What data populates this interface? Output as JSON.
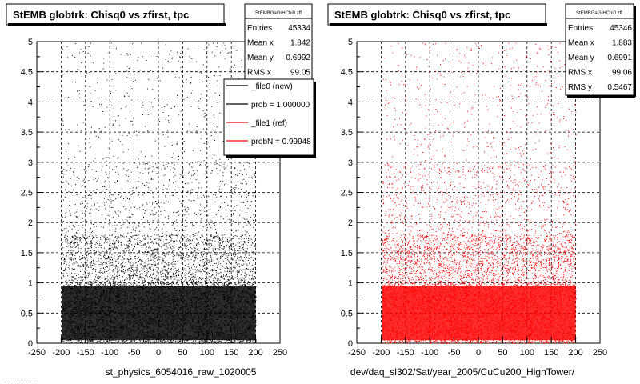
{
  "footer_left_fragment": "... ... ... ... ...",
  "charts": [
    {
      "title": "StEMB globtrk: Chisq0 vs zfirst, tpc",
      "xlabel": "st_physics_6054016_raw_1020005",
      "stats": {
        "name": "StEMBGaGrHChi0 zff",
        "rows": [
          {
            "label": "Entries",
            "value": "45334"
          },
          {
            "label": "Mean x",
            "value": "1.842"
          },
          {
            "label": "Mean y",
            "value": "0.6992"
          },
          {
            "label": "RMS x",
            "value": "99.05"
          }
        ]
      },
      "legend": [
        {
          "label": "_file0 (new)",
          "color": "#000000"
        },
        {
          "label": "prob = 1.000000",
          "color": "#000000"
        },
        {
          "label": "_file1 (ref)",
          "color": "#ff0000"
        },
        {
          "label": "probN = 0.99948",
          "color": "#ff0000"
        }
      ]
    },
    {
      "title": "StEMB globtrk: Chisq0 vs zfirst, tpc",
      "xlabel": "dev/daq_sl302/Sat/year_2005/CuCu200_HighTower/",
      "stats": {
        "name": "StEMBGaGrHChi0 zff",
        "rows": [
          {
            "label": "Entries",
            "value": "45346"
          },
          {
            "label": "Mean x",
            "value": "1.883"
          },
          {
            "label": "Mean y",
            "value": "0.6991"
          },
          {
            "label": "RMS x",
            "value": "99.06"
          },
          {
            "label": "RMS y",
            "value": "0.5467"
          }
        ]
      }
    }
  ],
  "chart_data": [
    {
      "type": "scatter",
      "color": "#000000",
      "xlim": [
        -250,
        250
      ],
      "ylim": [
        0,
        5
      ],
      "x_ticks": [
        "-250",
        "-200",
        "-150",
        "-100",
        "-50",
        "0",
        "50",
        "100",
        "150",
        "200",
        "250"
      ],
      "y_ticks": [
        "0",
        "0.5",
        "1",
        "1.5",
        "2",
        "2.5",
        "3",
        "3.5",
        "4",
        "4.5",
        "5"
      ],
      "grid": true,
      "entries": 45334
    },
    {
      "type": "scatter",
      "color": "#ff0000",
      "xlim": [
        -250,
        250
      ],
      "ylim": [
        0,
        5
      ],
      "x_ticks": [
        "-250",
        "-200",
        "-150",
        "-100",
        "-50",
        "0",
        "50",
        "100",
        "150",
        "200",
        "250"
      ],
      "y_ticks": [
        "0",
        "0.5",
        "1",
        "1.5",
        "2",
        "2.5",
        "3",
        "3.5",
        "4",
        "4.5",
        "5"
      ],
      "grid": true,
      "entries": 45346
    }
  ]
}
